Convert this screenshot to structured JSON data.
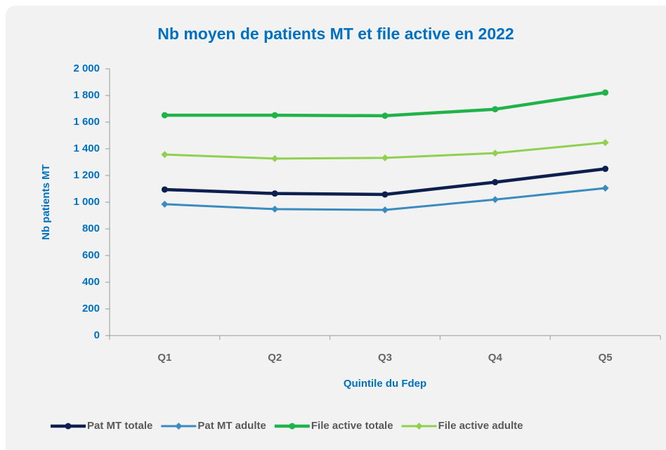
{
  "chart_data": {
    "type": "line",
    "title": "Nb moyen de patients MT et file active en 2022",
    "y_label": "Nb patients MT",
    "x_label": "Quintile du Fdep",
    "categories": [
      "Q1",
      "Q2",
      "Q3",
      "Q4",
      "Q5"
    ],
    "series": [
      {
        "name": "Pat MT totale",
        "color": "#0d1f4f",
        "marker": "circle",
        "values": [
          1095,
          1065,
          1058,
          1150,
          1250
        ]
      },
      {
        "name": "Pat MT adulte",
        "color": "#3a8bbf",
        "marker": "diamond",
        "values": [
          985,
          948,
          942,
          1020,
          1105
        ]
      },
      {
        "name": "File active totale",
        "color": "#1fb34a",
        "marker": "circle",
        "values": [
          1652,
          1652,
          1648,
          1697,
          1822
        ]
      },
      {
        "name": "File active adulte",
        "color": "#8fd14f",
        "marker": "diamond",
        "values": [
          1357,
          1327,
          1332,
          1368,
          1447
        ]
      }
    ],
    "ylim": [
      0,
      2000
    ],
    "yticks": [
      0,
      200,
      400,
      600,
      800,
      {
        "value": 1000,
        "label": "1 000"
      },
      {
        "value": 1200,
        "label": "1 200"
      },
      {
        "value": 1400,
        "label": "1 400"
      },
      {
        "value": 1600,
        "label": "1 600"
      },
      {
        "value": 1800,
        "label": "1 800"
      },
      {
        "value": 2000,
        "label": "2 000"
      }
    ],
    "legend": "bottom"
  }
}
